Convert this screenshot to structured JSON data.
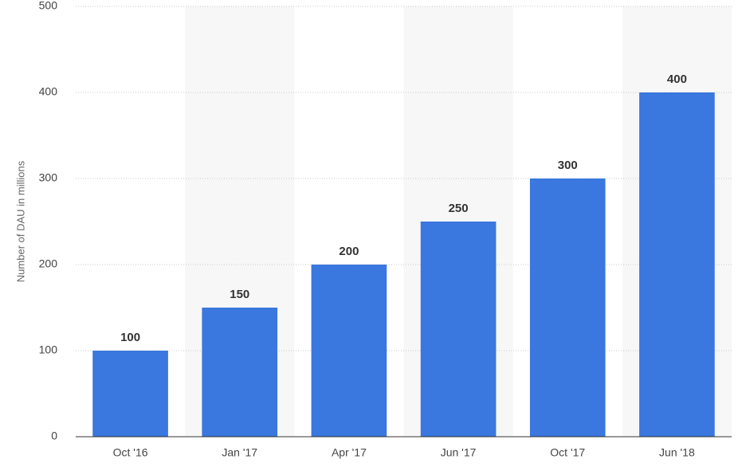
{
  "chart_data": {
    "type": "bar",
    "y_label": "Number of DAU in millions",
    "categories": [
      "Oct '16",
      "Jan '17",
      "Apr '17",
      "Jun '17",
      "Oct '17",
      "Jun '18"
    ],
    "values": [
      100,
      150,
      200,
      250,
      300,
      400
    ],
    "color": "#3a77de",
    "ylim": [
      0,
      500
    ],
    "yticks": [
      0,
      100,
      200,
      300,
      400,
      500
    ],
    "grid": true
  }
}
